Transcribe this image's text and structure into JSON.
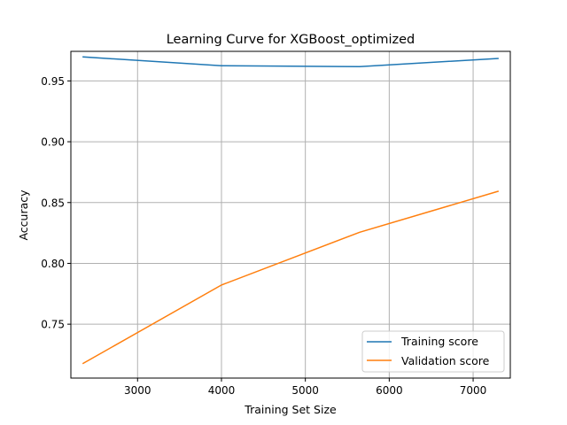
{
  "chart_data": {
    "type": "line",
    "title": "Learning Curve for XGBoost_optimized",
    "xlabel": "Training Set Size",
    "ylabel": "Accuracy",
    "x": [
      2352,
      4000,
      5648,
      7296
    ],
    "series": [
      {
        "name": "Training score",
        "color": "#1f77b4",
        "values": [
          0.9697,
          0.9625,
          0.9617,
          0.9685
        ]
      },
      {
        "name": "Validation score",
        "color": "#ff7f0e",
        "values": [
          0.7178,
          0.7822,
          0.8256,
          0.8592
        ]
      }
    ],
    "xlim": [
      2205,
      7443
    ],
    "ylim": [
      0.7057,
      0.9743
    ],
    "xticks": [
      3000,
      4000,
      5000,
      6000,
      7000
    ],
    "xtick_labels": [
      "3000",
      "4000",
      "5000",
      "6000",
      "7000"
    ],
    "yticks": [
      0.75,
      0.8,
      0.85,
      0.9,
      0.95
    ],
    "ytick_labels": [
      "0.75",
      "0.80",
      "0.85",
      "0.90",
      "0.95"
    ],
    "grid": true,
    "legend_position": "bottom-right"
  }
}
